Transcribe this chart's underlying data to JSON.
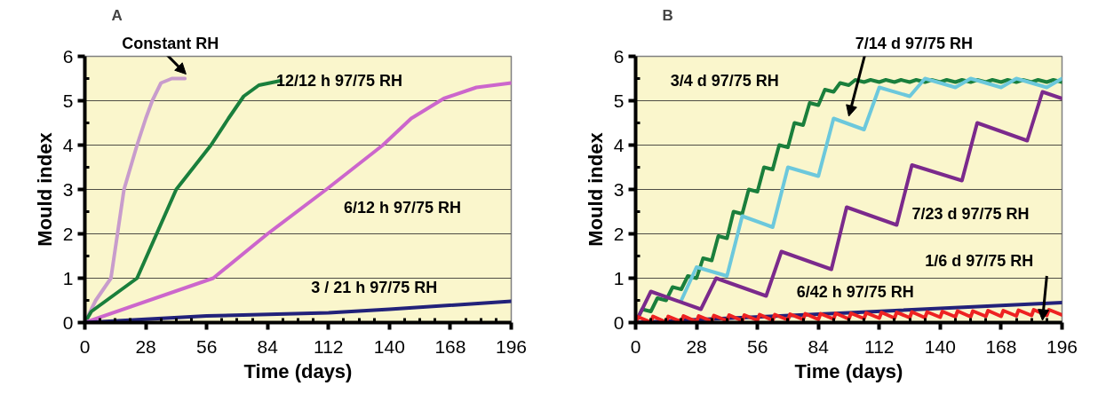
{
  "chart_data": [
    {
      "type": "line",
      "title": "A",
      "xlabel": "Time (days)",
      "ylabel": "Mould index",
      "xlim": [
        0,
        196
      ],
      "ylim": [
        0,
        6
      ],
      "xticks": [
        0,
        28,
        56,
        84,
        112,
        140,
        168,
        196
      ],
      "yticks": [
        0,
        1,
        2,
        3,
        4,
        5,
        6
      ],
      "grid": "y",
      "series": [
        {
          "name": "Constant RH",
          "color": "#c89ccc",
          "x": [
            0,
            5,
            12,
            15,
            18,
            24,
            28,
            31,
            35,
            40,
            46
          ],
          "values": [
            0,
            0.5,
            1,
            2,
            3,
            4,
            4.6,
            5,
            5.4,
            5.5,
            5.5
          ]
        },
        {
          "name": "12/12 h 97/75 RH",
          "color": "#1a7f3c",
          "x": [
            0,
            3,
            24,
            42,
            58,
            66,
            73,
            80,
            90
          ],
          "values": [
            0,
            0.25,
            1,
            3,
            4,
            4.6,
            5.1,
            5.35,
            5.45
          ]
        },
        {
          "name": "6/12 h 97/75 RH",
          "color": "#cc66cc",
          "x": [
            0,
            59,
            84,
            111,
            137,
            150,
            165,
            180,
            196
          ],
          "values": [
            0,
            1,
            2,
            3,
            4,
            4.6,
            5.05,
            5.3,
            5.4
          ]
        },
        {
          "name": "3 / 21 h 97/75 RH",
          "color": "#22227a",
          "x": [
            0,
            56,
            112,
            140,
            196
          ],
          "values": [
            0,
            0.15,
            0.22,
            0.3,
            0.48
          ]
        }
      ]
    },
    {
      "type": "line",
      "title": "B",
      "xlabel": "Time (days)",
      "ylabel": "Mould index",
      "xlim": [
        0,
        196
      ],
      "ylim": [
        0,
        6
      ],
      "xticks": [
        0,
        28,
        56,
        84,
        112,
        140,
        168,
        196
      ],
      "yticks": [
        0,
        1,
        2,
        3,
        4,
        5,
        6
      ],
      "grid": "y",
      "series": [
        {
          "name": "3/4 d 97/75 RH",
          "color": "#1a7f3c",
          "x": [
            0,
            3,
            7,
            10,
            14,
            17,
            21,
            24,
            28,
            31,
            35,
            38,
            42,
            45,
            49,
            52,
            56,
            59,
            63,
            66,
            70,
            73,
            77,
            80,
            84,
            87,
            91,
            94,
            98,
            101,
            105,
            108,
            112,
            115,
            119,
            122,
            126,
            129,
            133,
            136,
            140,
            143,
            147,
            150,
            154,
            157,
            161,
            164,
            168,
            171,
            175,
            178,
            182,
            185,
            189,
            192,
            196
          ],
          "values": [
            0,
            0.3,
            0.25,
            0.55,
            0.5,
            0.8,
            0.75,
            1.05,
            1.0,
            1.45,
            1.4,
            1.95,
            1.9,
            2.5,
            2.45,
            3.0,
            2.95,
            3.5,
            3.45,
            4.0,
            3.95,
            4.5,
            4.45,
            4.95,
            4.9,
            5.25,
            5.2,
            5.4,
            5.35,
            5.47,
            5.42,
            5.47,
            5.42,
            5.47,
            5.42,
            5.47,
            5.42,
            5.47,
            5.42,
            5.47,
            5.42,
            5.47,
            5.42,
            5.47,
            5.42,
            5.47,
            5.42,
            5.47,
            5.42,
            5.47,
            5.42,
            5.47,
            5.42,
            5.47,
            5.42,
            5.47,
            5.42
          ]
        },
        {
          "name": "7/14 d 97/75 RH",
          "color": "#6cc8dc",
          "x": [
            21,
            28,
            42,
            49,
            63,
            70,
            84,
            91,
            105,
            112,
            126,
            133,
            147,
            154,
            168,
            175,
            189,
            196
          ],
          "values": [
            0.5,
            1.25,
            1.05,
            2.4,
            2.15,
            3.5,
            3.3,
            4.6,
            4.35,
            5.3,
            5.1,
            5.5,
            5.3,
            5.5,
            5.3,
            5.5,
            5.3,
            5.5
          ]
        },
        {
          "name": "7/23 d 97/75 RH",
          "color": "#7b2a8c",
          "x": [
            0,
            7,
            30,
            37,
            60,
            67,
            90,
            97,
            120,
            127,
            150,
            157,
            180,
            187,
            196
          ],
          "values": [
            0,
            0.7,
            0.3,
            1.0,
            0.6,
            1.6,
            1.2,
            2.6,
            2.2,
            3.55,
            3.2,
            4.5,
            4.1,
            5.2,
            5.05
          ]
        },
        {
          "name": "6/42 h 97/75 RH",
          "color": "#22227a",
          "x": [
            0,
            98,
            196
          ],
          "values": [
            0,
            0.22,
            0.45
          ]
        },
        {
          "name": "1/6 d 97/75 RH",
          "color": "#ee2222",
          "x": [
            0,
            1,
            7,
            8,
            14,
            15,
            21,
            22,
            28,
            29,
            35,
            36,
            42,
            43,
            49,
            50,
            56,
            57,
            63,
            64,
            70,
            71,
            77,
            78,
            84,
            85,
            91,
            92,
            98,
            99,
            105,
            106,
            112,
            113,
            119,
            120,
            126,
            127,
            133,
            134,
            140,
            141,
            147,
            148,
            154,
            155,
            161,
            162,
            168,
            169,
            175,
            176,
            182,
            183,
            189,
            190,
            196
          ],
          "values": [
            0,
            0.13,
            0.01,
            0.14,
            0.01,
            0.14,
            0.02,
            0.15,
            0.02,
            0.15,
            0.03,
            0.16,
            0.04,
            0.17,
            0.04,
            0.17,
            0.05,
            0.18,
            0.05,
            0.18,
            0.06,
            0.19,
            0.07,
            0.2,
            0.07,
            0.2,
            0.08,
            0.21,
            0.08,
            0.21,
            0.09,
            0.22,
            0.1,
            0.23,
            0.1,
            0.23,
            0.11,
            0.24,
            0.11,
            0.24,
            0.12,
            0.25,
            0.13,
            0.26,
            0.13,
            0.26,
            0.14,
            0.27,
            0.14,
            0.27,
            0.15,
            0.28,
            0.16,
            0.29,
            0.16,
            0.29,
            0.17
          ]
        }
      ]
    }
  ]
}
